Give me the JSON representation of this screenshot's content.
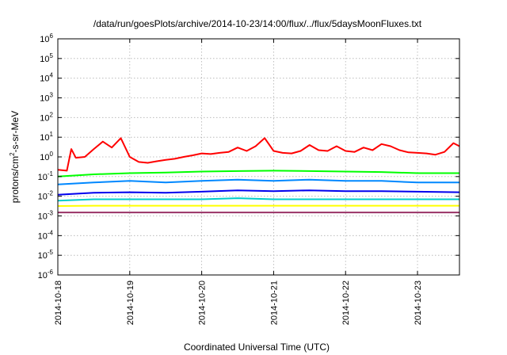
{
  "chart_data": {
    "type": "line",
    "title": "/data/run/goesPlots/archive/2014-10-23/14:00/flux/../flux/5daysMoonFluxes.txt",
    "xlabel": "Coordinated Universal Time (UTC)",
    "ylabel": {
      "pre": "protons/cm",
      "sup": "2",
      "post": "-s-sr-MeV"
    },
    "yscale": "log",
    "ylim": [
      1e-06,
      1000000.0
    ],
    "xlim": [
      "2014-10-18",
      "2014-10-23T14:00"
    ],
    "x_ticks": [
      "2014-10-18",
      "2014-10-19",
      "2014-10-20",
      "2014-10-21",
      "2014-10-22",
      "2014-10-23"
    ],
    "y_ticks": [
      {
        "base": "10",
        "exp": "6"
      },
      {
        "base": "10",
        "exp": "5"
      },
      {
        "base": "10",
        "exp": "4"
      },
      {
        "base": "10",
        "exp": "3"
      },
      {
        "base": "10",
        "exp": "2"
      },
      {
        "base": "10",
        "exp": "1"
      },
      {
        "base": "10",
        "exp": "0"
      },
      {
        "base": "10",
        "exp": "-1"
      },
      {
        "base": "10",
        "exp": "-2"
      },
      {
        "base": "10",
        "exp": "-3"
      },
      {
        "base": "10",
        "exp": "-4"
      },
      {
        "base": "10",
        "exp": "-5"
      },
      {
        "base": "10",
        "exp": "-6"
      }
    ],
    "grid": true,
    "series": [
      {
        "color": "#ff0000",
        "x": [
          "2014-10-18T00:00",
          "2014-10-18T03:00",
          "2014-10-18T04:30",
          "2014-10-18T06:00",
          "2014-10-18T09:00",
          "2014-10-18T12:00",
          "2014-10-18T15:00",
          "2014-10-18T18:00",
          "2014-10-18T21:00",
          "2014-10-19T00:00",
          "2014-10-19T03:00",
          "2014-10-19T06:00",
          "2014-10-19T09:00",
          "2014-10-19T12:00",
          "2014-10-19T15:00",
          "2014-10-19T18:00",
          "2014-10-19T21:00",
          "2014-10-20T00:00",
          "2014-10-20T03:00",
          "2014-10-20T06:00",
          "2014-10-20T09:00",
          "2014-10-20T12:00",
          "2014-10-20T15:00",
          "2014-10-20T18:00",
          "2014-10-20T21:00",
          "2014-10-21T00:00",
          "2014-10-21T03:00",
          "2014-10-21T06:00",
          "2014-10-21T09:00",
          "2014-10-21T12:00",
          "2014-10-21T15:00",
          "2014-10-21T18:00",
          "2014-10-21T21:00",
          "2014-10-22T00:00",
          "2014-10-22T03:00",
          "2014-10-22T06:00",
          "2014-10-22T09:00",
          "2014-10-22T12:00",
          "2014-10-22T15:00",
          "2014-10-22T18:00",
          "2014-10-22T21:00",
          "2014-10-23T00:00",
          "2014-10-23T03:00",
          "2014-10-23T06:00",
          "2014-10-23T09:00",
          "2014-10-23T12:00",
          "2014-10-23T14:00"
        ],
        "y": [
          0.22,
          0.2,
          2.5,
          0.9,
          1.0,
          2.5,
          6.0,
          3.0,
          9.0,
          1.0,
          0.55,
          0.5,
          0.6,
          0.7,
          0.8,
          1.0,
          1.2,
          1.5,
          1.4,
          1.6,
          1.8,
          3.0,
          2.0,
          3.5,
          9.0,
          2.0,
          1.6,
          1.5,
          2.0,
          4.0,
          2.2,
          2.0,
          3.5,
          2.0,
          1.8,
          3.0,
          2.2,
          4.5,
          3.5,
          2.2,
          1.7,
          1.6,
          1.5,
          1.3,
          1.8,
          5.0,
          3.5
        ]
      },
      {
        "color": "#00ff00",
        "x": [
          "2014-10-18T00:00",
          "2014-10-18T12:00",
          "2014-10-19T00:00",
          "2014-10-19T12:00",
          "2014-10-20T00:00",
          "2014-10-20T12:00",
          "2014-10-21T00:00",
          "2014-10-21T12:00",
          "2014-10-22T00:00",
          "2014-10-22T12:00",
          "2014-10-23T00:00",
          "2014-10-23T14:00"
        ],
        "y": [
          0.1,
          0.13,
          0.15,
          0.16,
          0.18,
          0.19,
          0.2,
          0.19,
          0.18,
          0.17,
          0.15,
          0.15
        ]
      },
      {
        "color": "#0088ff",
        "x": [
          "2014-10-18T00:00",
          "2014-10-18T12:00",
          "2014-10-19T00:00",
          "2014-10-19T12:00",
          "2014-10-20T00:00",
          "2014-10-20T12:00",
          "2014-10-21T00:00",
          "2014-10-21T12:00",
          "2014-10-22T00:00",
          "2014-10-22T12:00",
          "2014-10-23T00:00",
          "2014-10-23T14:00"
        ],
        "y": [
          0.04,
          0.05,
          0.06,
          0.05,
          0.06,
          0.07,
          0.06,
          0.07,
          0.06,
          0.06,
          0.05,
          0.05
        ]
      },
      {
        "color": "#0000ee",
        "x": [
          "2014-10-18T00:00",
          "2014-10-18T12:00",
          "2014-10-19T00:00",
          "2014-10-19T12:00",
          "2014-10-20T00:00",
          "2014-10-20T12:00",
          "2014-10-21T00:00",
          "2014-10-21T12:00",
          "2014-10-22T00:00",
          "2014-10-22T12:00",
          "2014-10-23T00:00",
          "2014-10-23T14:00"
        ],
        "y": [
          0.012,
          0.015,
          0.016,
          0.015,
          0.017,
          0.02,
          0.018,
          0.02,
          0.018,
          0.018,
          0.017,
          0.016
        ]
      },
      {
        "color": "#00cccc",
        "x": [
          "2014-10-18T00:00",
          "2014-10-18T12:00",
          "2014-10-19T00:00",
          "2014-10-19T12:00",
          "2014-10-20T00:00",
          "2014-10-20T12:00",
          "2014-10-21T00:00",
          "2014-10-21T12:00",
          "2014-10-22T00:00",
          "2014-10-22T12:00",
          "2014-10-23T00:00",
          "2014-10-23T14:00"
        ],
        "y": [
          0.006,
          0.007,
          0.007,
          0.007,
          0.007,
          0.008,
          0.007,
          0.007,
          0.007,
          0.007,
          0.007,
          0.007
        ]
      },
      {
        "color": "#ffff00",
        "x": [
          "2014-10-18T00:00",
          "2014-10-18T12:00",
          "2014-10-19T00:00",
          "2014-10-19T12:00",
          "2014-10-20T00:00",
          "2014-10-20T12:00",
          "2014-10-21T00:00",
          "2014-10-21T12:00",
          "2014-10-22T00:00",
          "2014-10-22T12:00",
          "2014-10-23T00:00",
          "2014-10-23T14:00"
        ],
        "y": [
          0.0032,
          0.0033,
          0.0033,
          0.0033,
          0.0033,
          0.0033,
          0.0033,
          0.0033,
          0.0033,
          0.0033,
          0.0033,
          0.0033
        ]
      },
      {
        "color": "#993366",
        "x": [
          "2014-10-18T00:00",
          "2014-10-18T12:00",
          "2014-10-19T00:00",
          "2014-10-19T12:00",
          "2014-10-20T00:00",
          "2014-10-20T12:00",
          "2014-10-21T00:00",
          "2014-10-21T12:00",
          "2014-10-22T00:00",
          "2014-10-22T12:00",
          "2014-10-23T00:00",
          "2014-10-23T14:00"
        ],
        "y": [
          0.0015,
          0.0015,
          0.0015,
          0.0015,
          0.0015,
          0.0015,
          0.0015,
          0.0015,
          0.0015,
          0.0015,
          0.0015,
          0.0015
        ]
      }
    ]
  }
}
